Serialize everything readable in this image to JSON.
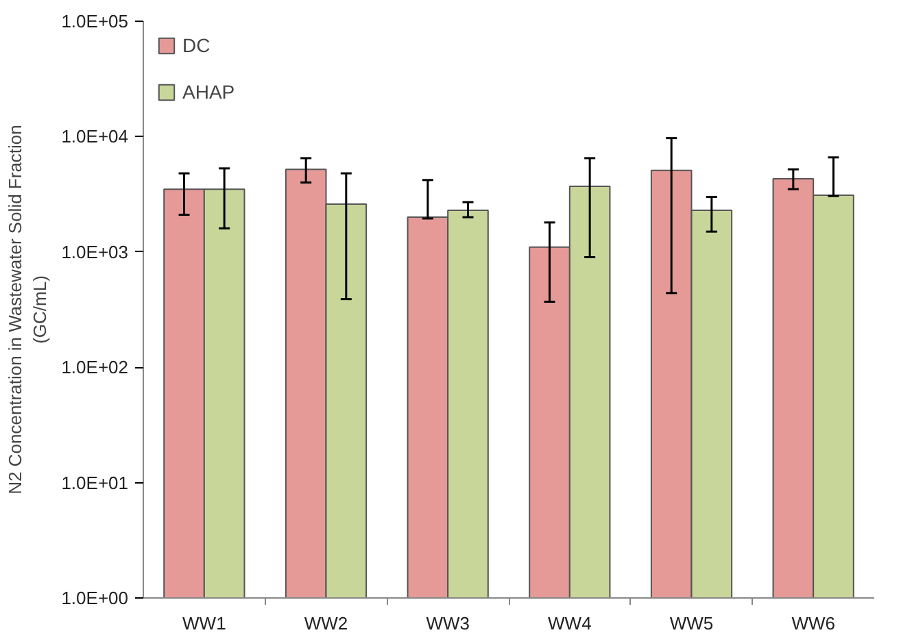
{
  "chart_data": {
    "type": "bar",
    "ylabel": "N2 Concentration in Wastewater Solid Fraction\n(GC/mL)",
    "categories": [
      "WW1",
      "WW2",
      "WW3",
      "WW4",
      "WW5",
      "WW6"
    ],
    "series": [
      {
        "name": "DC",
        "color": "#e59a98",
        "values": [
          3500,
          5200,
          2000,
          1100,
          5100,
          4300
        ],
        "errors": [
          [
            2100,
            4800
          ],
          [
            4000,
            6500
          ],
          [
            1950,
            4200
          ],
          [
            370,
            1800
          ],
          [
            440,
            9700
          ],
          [
            3500,
            5200
          ]
        ]
      },
      {
        "name": "AHAP",
        "color": "#c9d69a",
        "values": [
          3500,
          2600,
          2300,
          3700,
          2300,
          3100
        ],
        "errors": [
          [
            1600,
            5300
          ],
          [
            390,
            4800
          ],
          [
            2000,
            2700
          ],
          [
            900,
            6500
          ],
          [
            1500,
            3000
          ],
          [
            3050,
            6600
          ]
        ]
      }
    ],
    "log": true,
    "ylim": [
      1,
      100000
    ],
    "yticks": [
      {
        "value": 1,
        "label": "1.0E+00"
      },
      {
        "value": 10,
        "label": "1.0E+01"
      },
      {
        "value": 100,
        "label": "1.0E+02"
      },
      {
        "value": 1000,
        "label": "1.0E+03"
      },
      {
        "value": 10000,
        "label": "1.0E+04"
      },
      {
        "value": 100000,
        "label": "1.0E+05"
      }
    ],
    "legend": "top left",
    "grid": false
  }
}
